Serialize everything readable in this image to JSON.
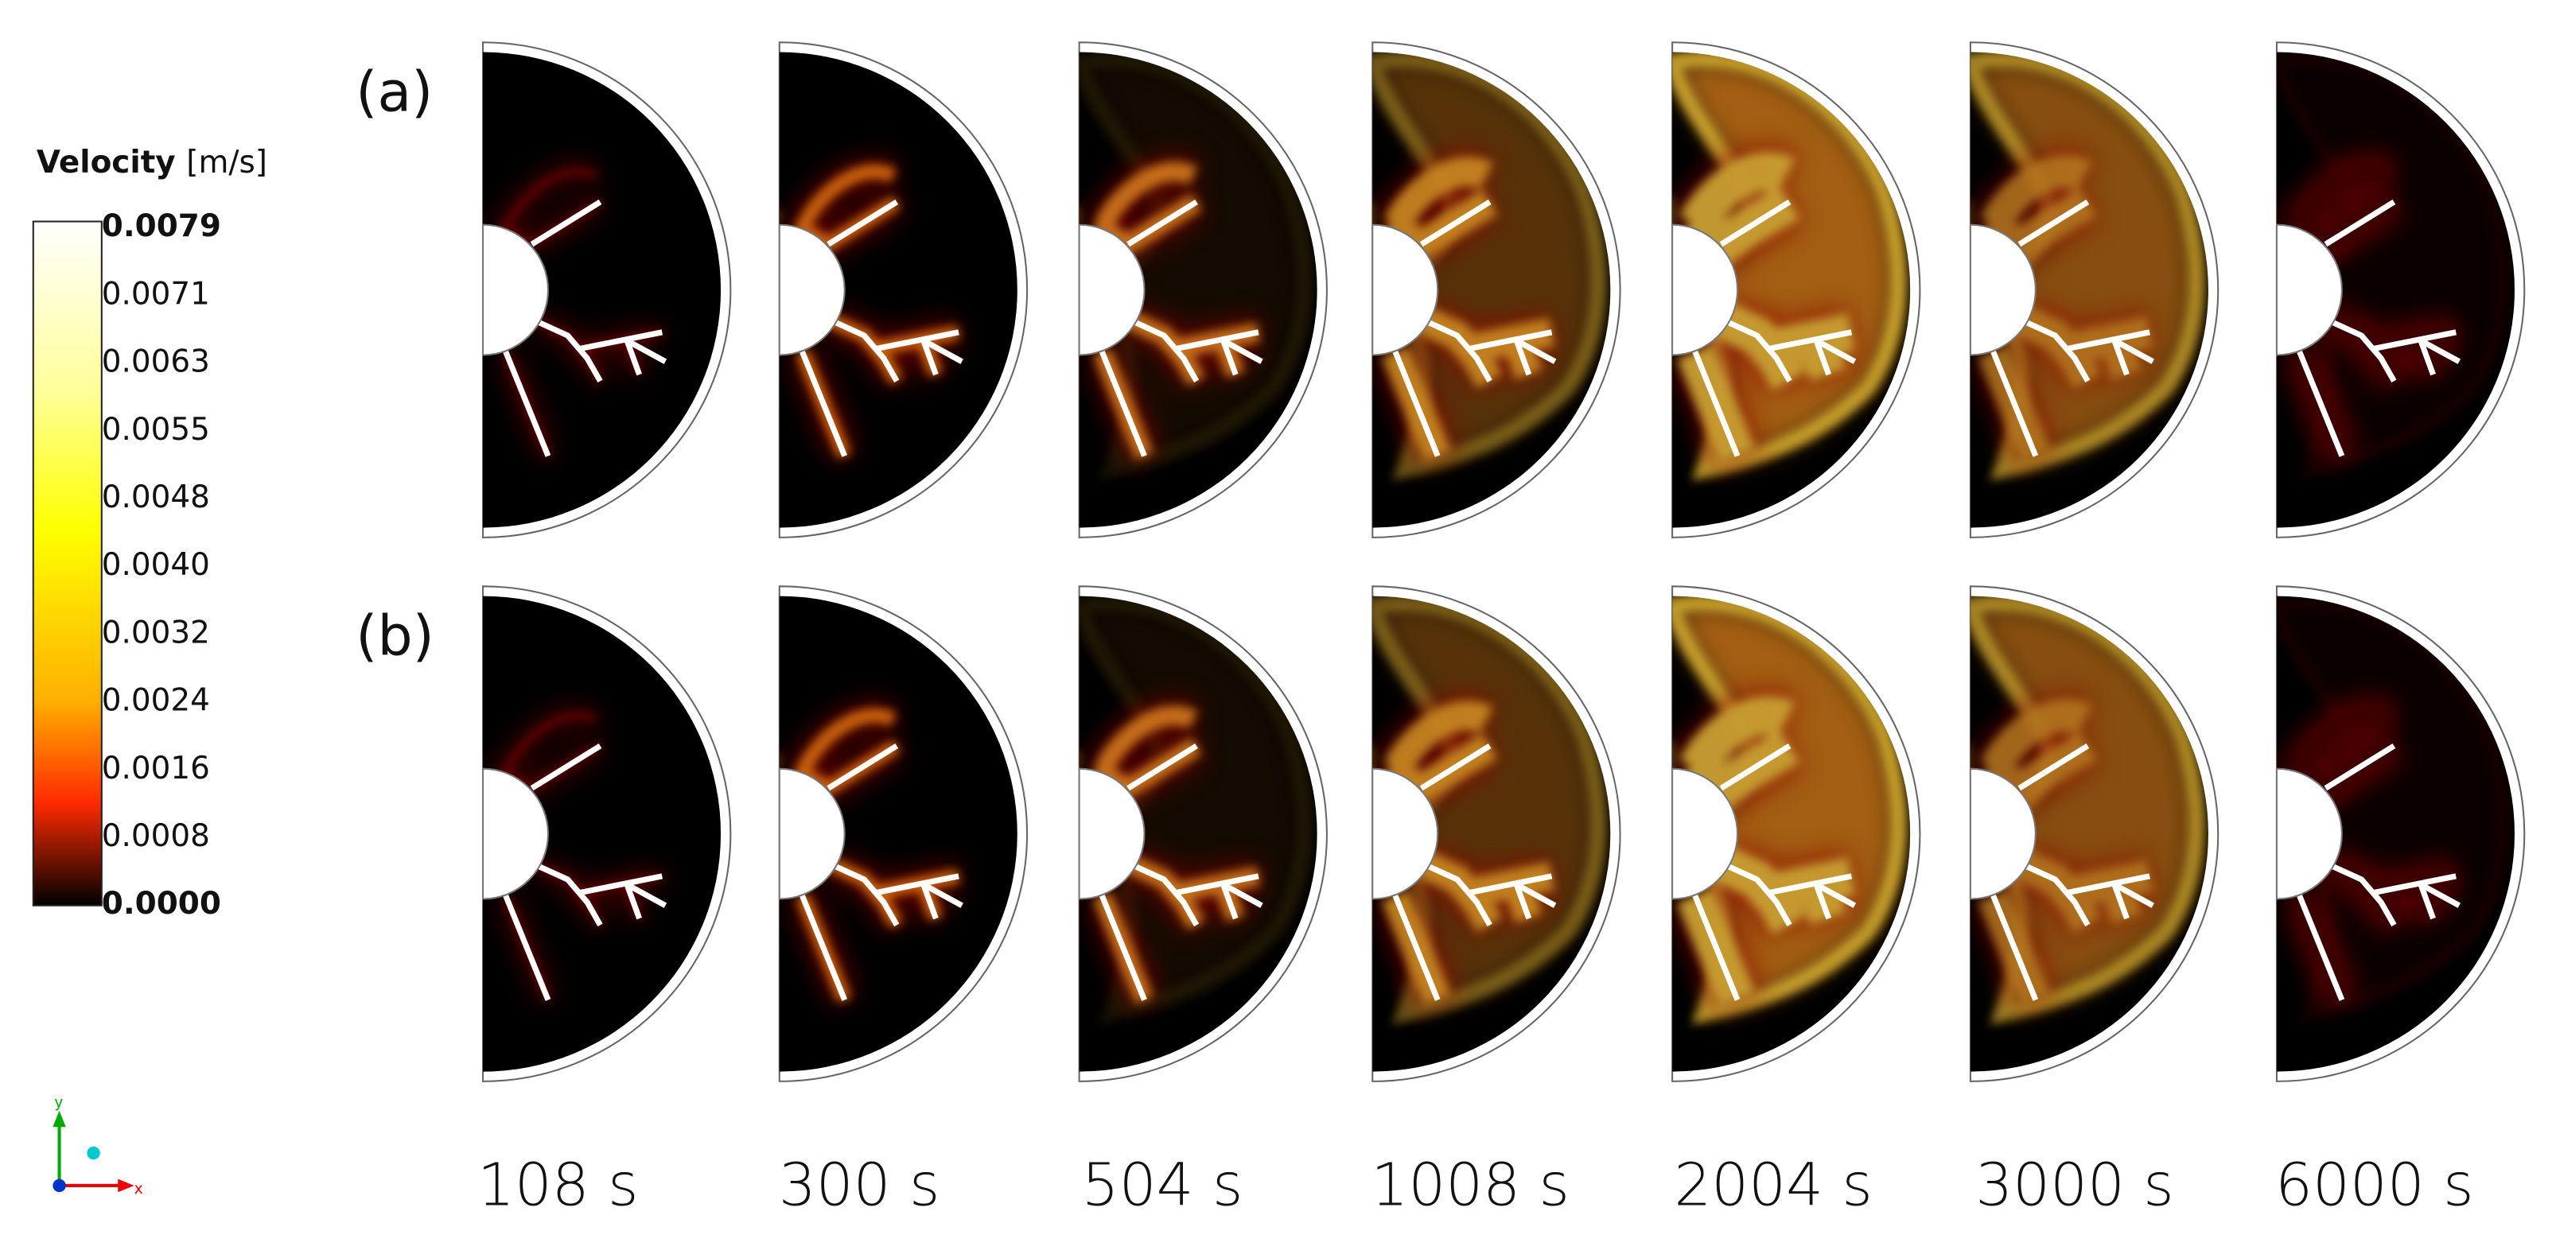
{
  "legend": {
    "title": "Velocity",
    "unit": "[m/s]",
    "ticks": [
      "0.0079",
      "0.0071",
      "0.0063",
      "0.0055",
      "0.0048",
      "0.0040",
      "0.0032",
      "0.0024",
      "0.0016",
      "0.0008",
      "0.0000"
    ]
  },
  "rows": [
    "(a)",
    "(b)"
  ],
  "times": [
    "108 s",
    "300 s",
    "504 s",
    "1008 s",
    "2004 s",
    "3000 s",
    "6000 s"
  ],
  "axes": {
    "y": "y",
    "x": "x"
  }
}
